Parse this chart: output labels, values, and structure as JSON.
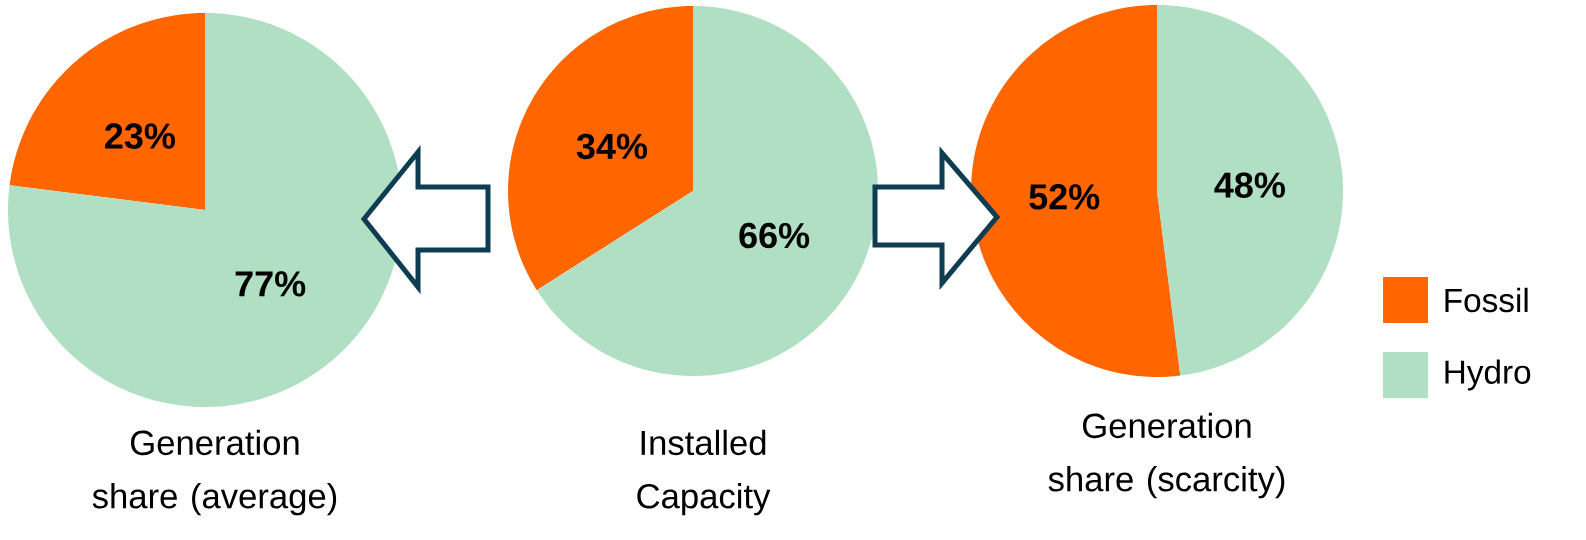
{
  "chart_data": [
    {
      "type": "pie",
      "title": "Generation share (average)",
      "categories": [
        null,
        null
      ],
      "values": [
        23,
        77
      ],
      "colors": [
        "#ff6600",
        "#b0dfc4"
      ],
      "value_labels": [
        "23%",
        "77%"
      ]
    },
    {
      "type": "pie",
      "title": "Installed Capacity",
      "categories": [
        null,
        null
      ],
      "values": [
        34,
        66
      ],
      "colors": [
        "#ff6600",
        "#b0dfc4"
      ],
      "value_labels": [
        "34%",
        "66%"
      ]
    },
    {
      "type": "pie",
      "title": "Generation share (scarcity)",
      "categories": [
        "Fossil",
        "Hydro"
      ],
      "values": [
        52,
        48
      ],
      "colors": [
        "#ff6600",
        "#b0dfc4"
      ],
      "value_labels": [
        "52%",
        "48%"
      ],
      "legend": "right"
    }
  ]
}
